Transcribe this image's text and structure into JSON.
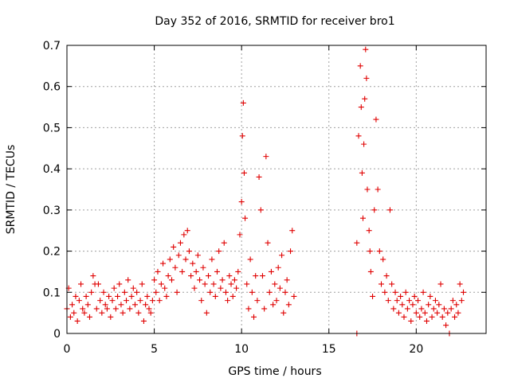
{
  "chart_data": {
    "type": "scatter",
    "title": "Day 352 of 2016, SRMTID for receiver bro1",
    "xlabel": "GPS time / hours",
    "ylabel": "SRMTID / TECUs",
    "xlim": [
      0,
      24
    ],
    "ylim": [
      0,
      0.7
    ],
    "xticks": [
      0,
      5,
      10,
      15,
      20
    ],
    "yticks": [
      0,
      0.1,
      0.2,
      0.3,
      0.4,
      0.5,
      0.6,
      0.7
    ],
    "xtick_labels": [
      "0",
      "5",
      "10",
      "15",
      "20"
    ],
    "ytick_labels": [
      "0",
      "0.1",
      "0.2",
      "0.3",
      "0.4",
      "0.5",
      "0.6",
      "0.7"
    ],
    "grid": true,
    "marker": "+",
    "series": [
      {
        "name": "SRMTID bro1",
        "color": "#e00000",
        "points": [
          [
            0.0,
            0.06
          ],
          [
            0.1,
            0.11
          ],
          [
            0.2,
            0.04
          ],
          [
            0.3,
            0.07
          ],
          [
            0.4,
            0.05
          ],
          [
            0.5,
            0.09
          ],
          [
            0.6,
            0.03
          ],
          [
            0.7,
            0.08
          ],
          [
            0.8,
            0.12
          ],
          [
            0.9,
            0.06
          ],
          [
            1.0,
            0.05
          ],
          [
            1.1,
            0.09
          ],
          [
            1.2,
            0.07
          ],
          [
            1.3,
            0.04
          ],
          [
            1.4,
            0.1
          ],
          [
            1.5,
            0.14
          ],
          [
            1.6,
            0.12
          ],
          [
            1.7,
            0.06
          ],
          [
            1.8,
            0.12
          ],
          [
            1.9,
            0.08
          ],
          [
            2.0,
            0.05
          ],
          [
            2.1,
            0.1
          ],
          [
            2.2,
            0.07
          ],
          [
            2.3,
            0.06
          ],
          [
            2.4,
            0.09
          ],
          [
            2.5,
            0.04
          ],
          [
            2.6,
            0.08
          ],
          [
            2.7,
            0.11
          ],
          [
            2.8,
            0.06
          ],
          [
            2.9,
            0.09
          ],
          [
            3.0,
            0.12
          ],
          [
            3.1,
            0.07
          ],
          [
            3.2,
            0.05
          ],
          [
            3.3,
            0.1
          ],
          [
            3.4,
            0.08
          ],
          [
            3.5,
            0.13
          ],
          [
            3.6,
            0.06
          ],
          [
            3.7,
            0.09
          ],
          [
            3.8,
            0.11
          ],
          [
            3.9,
            0.07
          ],
          [
            4.0,
            0.1
          ],
          [
            4.1,
            0.05
          ],
          [
            4.2,
            0.08
          ],
          [
            4.3,
            0.12
          ],
          [
            4.4,
            0.03
          ],
          [
            4.5,
            0.07
          ],
          [
            4.6,
            0.09
          ],
          [
            4.7,
            0.06
          ],
          [
            4.8,
            0.05
          ],
          [
            4.9,
            0.08
          ],
          [
            5.0,
            0.13
          ],
          [
            5.1,
            0.1
          ],
          [
            5.2,
            0.15
          ],
          [
            5.3,
            0.08
          ],
          [
            5.4,
            0.12
          ],
          [
            5.5,
            0.17
          ],
          [
            5.6,
            0.11
          ],
          [
            5.7,
            0.09
          ],
          [
            5.8,
            0.14
          ],
          [
            5.9,
            0.18
          ],
          [
            6.0,
            0.13
          ],
          [
            6.1,
            0.21
          ],
          [
            6.2,
            0.16
          ],
          [
            6.3,
            0.1
          ],
          [
            6.4,
            0.19
          ],
          [
            6.5,
            0.22
          ],
          [
            6.6,
            0.15
          ],
          [
            6.7,
            0.24
          ],
          [
            6.8,
            0.18
          ],
          [
            6.9,
            0.25
          ],
          [
            7.0,
            0.2
          ],
          [
            7.1,
            0.14
          ],
          [
            7.2,
            0.17
          ],
          [
            7.3,
            0.11
          ],
          [
            7.4,
            0.15
          ],
          [
            7.5,
            0.19
          ],
          [
            7.6,
            0.13
          ],
          [
            7.7,
            0.08
          ],
          [
            7.8,
            0.16
          ],
          [
            7.9,
            0.12
          ],
          [
            8.0,
            0.05
          ],
          [
            8.1,
            0.14
          ],
          [
            8.2,
            0.1
          ],
          [
            8.3,
            0.18
          ],
          [
            8.4,
            0.12
          ],
          [
            8.5,
            0.09
          ],
          [
            8.6,
            0.15
          ],
          [
            8.7,
            0.2
          ],
          [
            8.8,
            0.11
          ],
          [
            8.9,
            0.13
          ],
          [
            9.0,
            0.22
          ],
          [
            9.1,
            0.1
          ],
          [
            9.2,
            0.08
          ],
          [
            9.3,
            0.14
          ],
          [
            9.4,
            0.12
          ],
          [
            9.5,
            0.09
          ],
          [
            9.6,
            0.13
          ],
          [
            9.7,
            0.11
          ],
          [
            9.8,
            0.15
          ],
          [
            9.9,
            0.24
          ],
          [
            10.0,
            0.32
          ],
          [
            10.05,
            0.48
          ],
          [
            10.1,
            0.56
          ],
          [
            10.15,
            0.39
          ],
          [
            10.2,
            0.28
          ],
          [
            10.3,
            0.12
          ],
          [
            10.4,
            0.06
          ],
          [
            10.5,
            0.18
          ],
          [
            10.6,
            0.1
          ],
          [
            10.7,
            0.04
          ],
          [
            10.8,
            0.14
          ],
          [
            10.9,
            0.08
          ],
          [
            11.0,
            0.38
          ],
          [
            11.1,
            0.3
          ],
          [
            11.2,
            0.14
          ],
          [
            11.3,
            0.06
          ],
          [
            11.4,
            0.43
          ],
          [
            11.5,
            0.22
          ],
          [
            11.6,
            0.1
          ],
          [
            11.7,
            0.15
          ],
          [
            11.8,
            0.07
          ],
          [
            11.9,
            0.12
          ],
          [
            12.0,
            0.08
          ],
          [
            12.1,
            0.16
          ],
          [
            12.2,
            0.11
          ],
          [
            12.3,
            0.19
          ],
          [
            12.4,
            0.05
          ],
          [
            12.5,
            0.1
          ],
          [
            12.6,
            0.13
          ],
          [
            12.7,
            0.07
          ],
          [
            12.8,
            0.2
          ],
          [
            12.9,
            0.25
          ],
          [
            13.0,
            0.09
          ],
          [
            16.6,
            0.0
          ],
          [
            16.6,
            0.22
          ],
          [
            16.7,
            0.48
          ],
          [
            16.8,
            0.65
          ],
          [
            16.85,
            0.55
          ],
          [
            16.9,
            0.39
          ],
          [
            16.95,
            0.28
          ],
          [
            17.0,
            0.46
          ],
          [
            17.05,
            0.57
          ],
          [
            17.1,
            0.69
          ],
          [
            17.15,
            0.62
          ],
          [
            17.2,
            0.35
          ],
          [
            17.3,
            0.25
          ],
          [
            17.35,
            0.2
          ],
          [
            17.4,
            0.15
          ],
          [
            17.5,
            0.09
          ],
          [
            17.6,
            0.3
          ],
          [
            17.7,
            0.52
          ],
          [
            17.8,
            0.35
          ],
          [
            17.9,
            0.2
          ],
          [
            18.0,
            0.12
          ],
          [
            18.1,
            0.18
          ],
          [
            18.2,
            0.1
          ],
          [
            18.3,
            0.14
          ],
          [
            18.4,
            0.08
          ],
          [
            18.5,
            0.3
          ],
          [
            18.6,
            0.12
          ],
          [
            18.7,
            0.06
          ],
          [
            18.8,
            0.1
          ],
          [
            18.9,
            0.08
          ],
          [
            19.0,
            0.05
          ],
          [
            19.1,
            0.09
          ],
          [
            19.2,
            0.07
          ],
          [
            19.3,
            0.04
          ],
          [
            19.4,
            0.1
          ],
          [
            19.5,
            0.06
          ],
          [
            19.6,
            0.08
          ],
          [
            19.7,
            0.03
          ],
          [
            19.8,
            0.07
          ],
          [
            19.9,
            0.09
          ],
          [
            20.0,
            0.05
          ],
          [
            20.1,
            0.08
          ],
          [
            20.2,
            0.04
          ],
          [
            20.3,
            0.06
          ],
          [
            20.4,
            0.1
          ],
          [
            20.5,
            0.05
          ],
          [
            20.6,
            0.03
          ],
          [
            20.7,
            0.07
          ],
          [
            20.8,
            0.09
          ],
          [
            20.9,
            0.04
          ],
          [
            21.0,
            0.06
          ],
          [
            21.1,
            0.08
          ],
          [
            21.2,
            0.05
          ],
          [
            21.3,
            0.07
          ],
          [
            21.4,
            0.12
          ],
          [
            21.5,
            0.04
          ],
          [
            21.6,
            0.06
          ],
          [
            21.7,
            0.02
          ],
          [
            21.8,
            0.05
          ],
          [
            21.9,
            0.0
          ],
          [
            22.0,
            0.06
          ],
          [
            22.1,
            0.08
          ],
          [
            22.2,
            0.04
          ],
          [
            22.3,
            0.07
          ],
          [
            22.4,
            0.05
          ],
          [
            22.5,
            0.12
          ],
          [
            22.6,
            0.08
          ],
          [
            22.7,
            0.1
          ]
        ]
      }
    ]
  }
}
